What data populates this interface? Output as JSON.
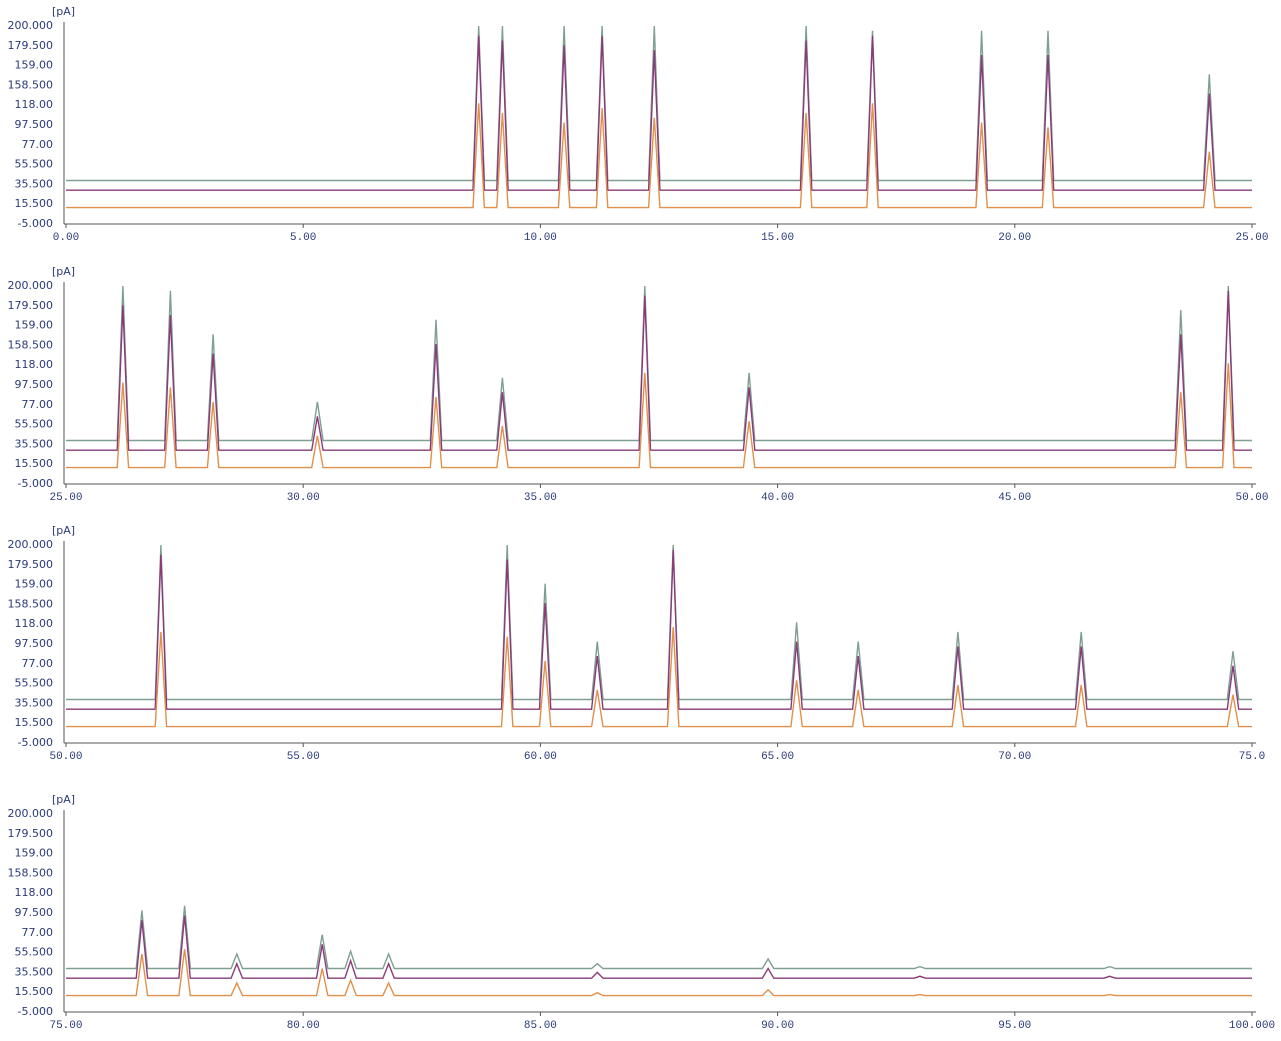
{
  "chart_data": [
    {
      "type": "line",
      "ylabel": "[pA]",
      "ylim": [
        -5,
        200
      ],
      "ytick_labels": [
        "200.000",
        "179.500",
        "159.00",
        "158.500",
        "118.00",
        "97.500",
        "77.00",
        "55.500",
        "35.500",
        "15.500",
        "-5.000"
      ],
      "xlim": [
        0,
        25
      ],
      "xticks": [
        {
          "value": 0,
          "label": "0.00"
        },
        {
          "value": 5,
          "label": "5.00"
        },
        {
          "value": 10,
          "label": "10.00"
        },
        {
          "value": 15,
          "label": "15.00"
        },
        {
          "value": 20,
          "label": "20.00"
        },
        {
          "value": 25,
          "label": "25.00"
        }
      ],
      "x": [
        0,
        8.58,
        8.7,
        8.82,
        9.08,
        9.2,
        9.32,
        10.38,
        10.5,
        10.62,
        11.18,
        11.3,
        11.42,
        12.28,
        12.4,
        12.52,
        15.48,
        15.6,
        15.72,
        16.88,
        17.0,
        17.12,
        19.18,
        19.3,
        19.42,
        20.58,
        20.7,
        20.82,
        23.98,
        24.1,
        24.22,
        25
      ],
      "series": [
        {
          "color": "#7fa090",
          "values": [
            40,
            40,
            200,
            40,
            40,
            200,
            40,
            40,
            200,
            40,
            40,
            200,
            40,
            40,
            200,
            40,
            40,
            200,
            40,
            40,
            195,
            40,
            40,
            195,
            40,
            40,
            195,
            40,
            40,
            150,
            40,
            40
          ]
        },
        {
          "color": "#8a3a7a",
          "values": [
            30,
            30,
            190,
            30,
            30,
            185,
            30,
            30,
            180,
            30,
            30,
            190,
            30,
            30,
            175,
            30,
            30,
            185,
            30,
            30,
            190,
            30,
            30,
            170,
            30,
            30,
            170,
            30,
            30,
            130,
            30,
            30
          ]
        },
        {
          "color": "#e0904a",
          "values": [
            12,
            12,
            120,
            12,
            12,
            110,
            12,
            12,
            100,
            12,
            12,
            115,
            12,
            12,
            105,
            12,
            12,
            110,
            12,
            12,
            120,
            12,
            12,
            100,
            12,
            12,
            95,
            12,
            12,
            70,
            12,
            12
          ]
        }
      ]
    },
    {
      "type": "line",
      "ylabel": "[pA]",
      "ylim": [
        -5,
        200
      ],
      "ytick_labels": [
        "200.000",
        "179.500",
        "159.00",
        "158.500",
        "118.00",
        "97.500",
        "77.00",
        "55.500",
        "35.500",
        "15.500",
        "-5.000"
      ],
      "xlim": [
        25,
        50
      ],
      "xticks": [
        {
          "value": 25,
          "label": "25.00"
        },
        {
          "value": 30,
          "label": "30.00"
        },
        {
          "value": 35,
          "label": "35.00"
        },
        {
          "value": 40,
          "label": "40.00"
        },
        {
          "value": 45,
          "label": "45.00"
        },
        {
          "value": 50,
          "label": "50.00"
        }
      ],
      "x": [
        25,
        26.08,
        26.2,
        26.32,
        27.08,
        27.2,
        27.32,
        27.98,
        28.1,
        28.22,
        30.18,
        30.3,
        30.42,
        32.68,
        32.8,
        32.92,
        34.08,
        34.2,
        34.32,
        37.08,
        37.2,
        37.32,
        39.28,
        39.4,
        39.52,
        48.38,
        48.5,
        48.62,
        49.38,
        49.5,
        49.62,
        50
      ],
      "series": [
        {
          "color": "#7fa090",
          "values": [
            40,
            40,
            200,
            40,
            40,
            195,
            40,
            40,
            150,
            40,
            40,
            80,
            40,
            40,
            165,
            40,
            40,
            105,
            40,
            40,
            200,
            40,
            40,
            110,
            40,
            40,
            175,
            40,
            40,
            200,
            40,
            40
          ]
        },
        {
          "color": "#8a3a7a",
          "values": [
            30,
            30,
            180,
            30,
            30,
            170,
            30,
            30,
            130,
            30,
            30,
            65,
            30,
            30,
            140,
            30,
            30,
            90,
            30,
            30,
            190,
            30,
            30,
            95,
            30,
            30,
            150,
            30,
            30,
            195,
            30,
            30
          ]
        },
        {
          "color": "#e0904a",
          "values": [
            12,
            12,
            100,
            12,
            12,
            95,
            12,
            12,
            80,
            12,
            12,
            45,
            12,
            12,
            85,
            12,
            12,
            55,
            12,
            12,
            110,
            12,
            12,
            60,
            12,
            12,
            90,
            12,
            12,
            120,
            12,
            12
          ]
        }
      ]
    },
    {
      "type": "line",
      "ylabel": "[pA]",
      "ylim": [
        -5,
        200
      ],
      "ytick_labels": [
        "200.000",
        "179.500",
        "159.00",
        "158.500",
        "118.00",
        "97.500",
        "77.00",
        "55.500",
        "35.500",
        "15.500",
        "-5.000"
      ],
      "xlim": [
        50,
        75
      ],
      "xticks": [
        {
          "value": 50,
          "label": "50.00"
        },
        {
          "value": 55,
          "label": "55.00"
        },
        {
          "value": 60,
          "label": "60.00"
        },
        {
          "value": 65,
          "label": "65.00"
        },
        {
          "value": 70,
          "label": "70.00"
        },
        {
          "value": 75,
          "label": "75.0"
        }
      ],
      "x": [
        50,
        51.88,
        52.0,
        52.12,
        59.18,
        59.3,
        59.42,
        59.98,
        60.1,
        60.22,
        61.08,
        61.2,
        61.32,
        62.68,
        62.8,
        62.92,
        65.28,
        65.4,
        65.52,
        66.58,
        66.7,
        66.82,
        68.68,
        68.8,
        68.92,
        71.28,
        71.4,
        71.52,
        74.48,
        74.6,
        74.72,
        75
      ],
      "series": [
        {
          "color": "#7fa090",
          "values": [
            40,
            40,
            200,
            40,
            40,
            200,
            40,
            40,
            160,
            40,
            40,
            100,
            40,
            40,
            200,
            40,
            40,
            120,
            40,
            40,
            100,
            40,
            40,
            110,
            40,
            40,
            110,
            40,
            40,
            90,
            40,
            40
          ]
        },
        {
          "color": "#8a3a7a",
          "values": [
            30,
            30,
            190,
            30,
            30,
            185,
            30,
            30,
            140,
            30,
            30,
            85,
            30,
            30,
            195,
            30,
            30,
            100,
            30,
            30,
            85,
            30,
            30,
            95,
            30,
            30,
            95,
            30,
            30,
            75,
            30,
            30
          ]
        },
        {
          "color": "#e0904a",
          "values": [
            12,
            12,
            110,
            12,
            12,
            105,
            12,
            12,
            80,
            12,
            12,
            50,
            12,
            12,
            115,
            12,
            12,
            60,
            12,
            12,
            50,
            12,
            12,
            55,
            12,
            12,
            55,
            12,
            12,
            45,
            12,
            12
          ]
        }
      ]
    },
    {
      "type": "line",
      "ylabel": "[pA]",
      "ylim": [
        -5,
        200
      ],
      "ytick_labels": [
        "200.000",
        "179.500",
        "159.00",
        "158.500",
        "118.00",
        "97.500",
        "77.00",
        "55.500",
        "35.500",
        "15.500",
        "-5.000"
      ],
      "xlim": [
        75,
        100
      ],
      "xticks": [
        {
          "value": 75,
          "label": "75.00"
        },
        {
          "value": 80,
          "label": "80.00"
        },
        {
          "value": 85,
          "label": "85.00"
        },
        {
          "value": 90,
          "label": "90.00"
        },
        {
          "value": 95,
          "label": "95.00"
        },
        {
          "value": 100,
          "label": "100.000"
        }
      ],
      "x": [
        75,
        76.48,
        76.6,
        76.72,
        77.38,
        77.5,
        77.62,
        78.48,
        78.6,
        78.72,
        80.28,
        80.4,
        80.52,
        80.88,
        81.0,
        81.12,
        81.68,
        81.8,
        81.92,
        86.08,
        86.2,
        86.32,
        89.68,
        89.8,
        89.92,
        92.88,
        93.0,
        93.12,
        96.88,
        97.0,
        97.12,
        100
      ],
      "series": [
        {
          "color": "#7fa090",
          "values": [
            40,
            40,
            100,
            40,
            40,
            105,
            40,
            40,
            55,
            40,
            40,
            75,
            40,
            40,
            58,
            40,
            40,
            55,
            40,
            40,
            45,
            40,
            40,
            50,
            40,
            40,
            42,
            40,
            40,
            42,
            40,
            40
          ]
        },
        {
          "color": "#8a3a7a",
          "values": [
            30,
            30,
            90,
            30,
            30,
            95,
            30,
            30,
            45,
            30,
            30,
            65,
            30,
            30,
            48,
            30,
            30,
            45,
            30,
            30,
            36,
            30,
            30,
            40,
            30,
            30,
            32,
            30,
            30,
            32,
            30,
            30
          ]
        },
        {
          "color": "#e0904a",
          "values": [
            12,
            12,
            55,
            12,
            12,
            60,
            12,
            12,
            25,
            12,
            12,
            40,
            12,
            12,
            28,
            12,
            12,
            25,
            12,
            12,
            15,
            12,
            12,
            18,
            12,
            12,
            13,
            12,
            12,
            13,
            12,
            12
          ]
        }
      ]
    }
  ]
}
